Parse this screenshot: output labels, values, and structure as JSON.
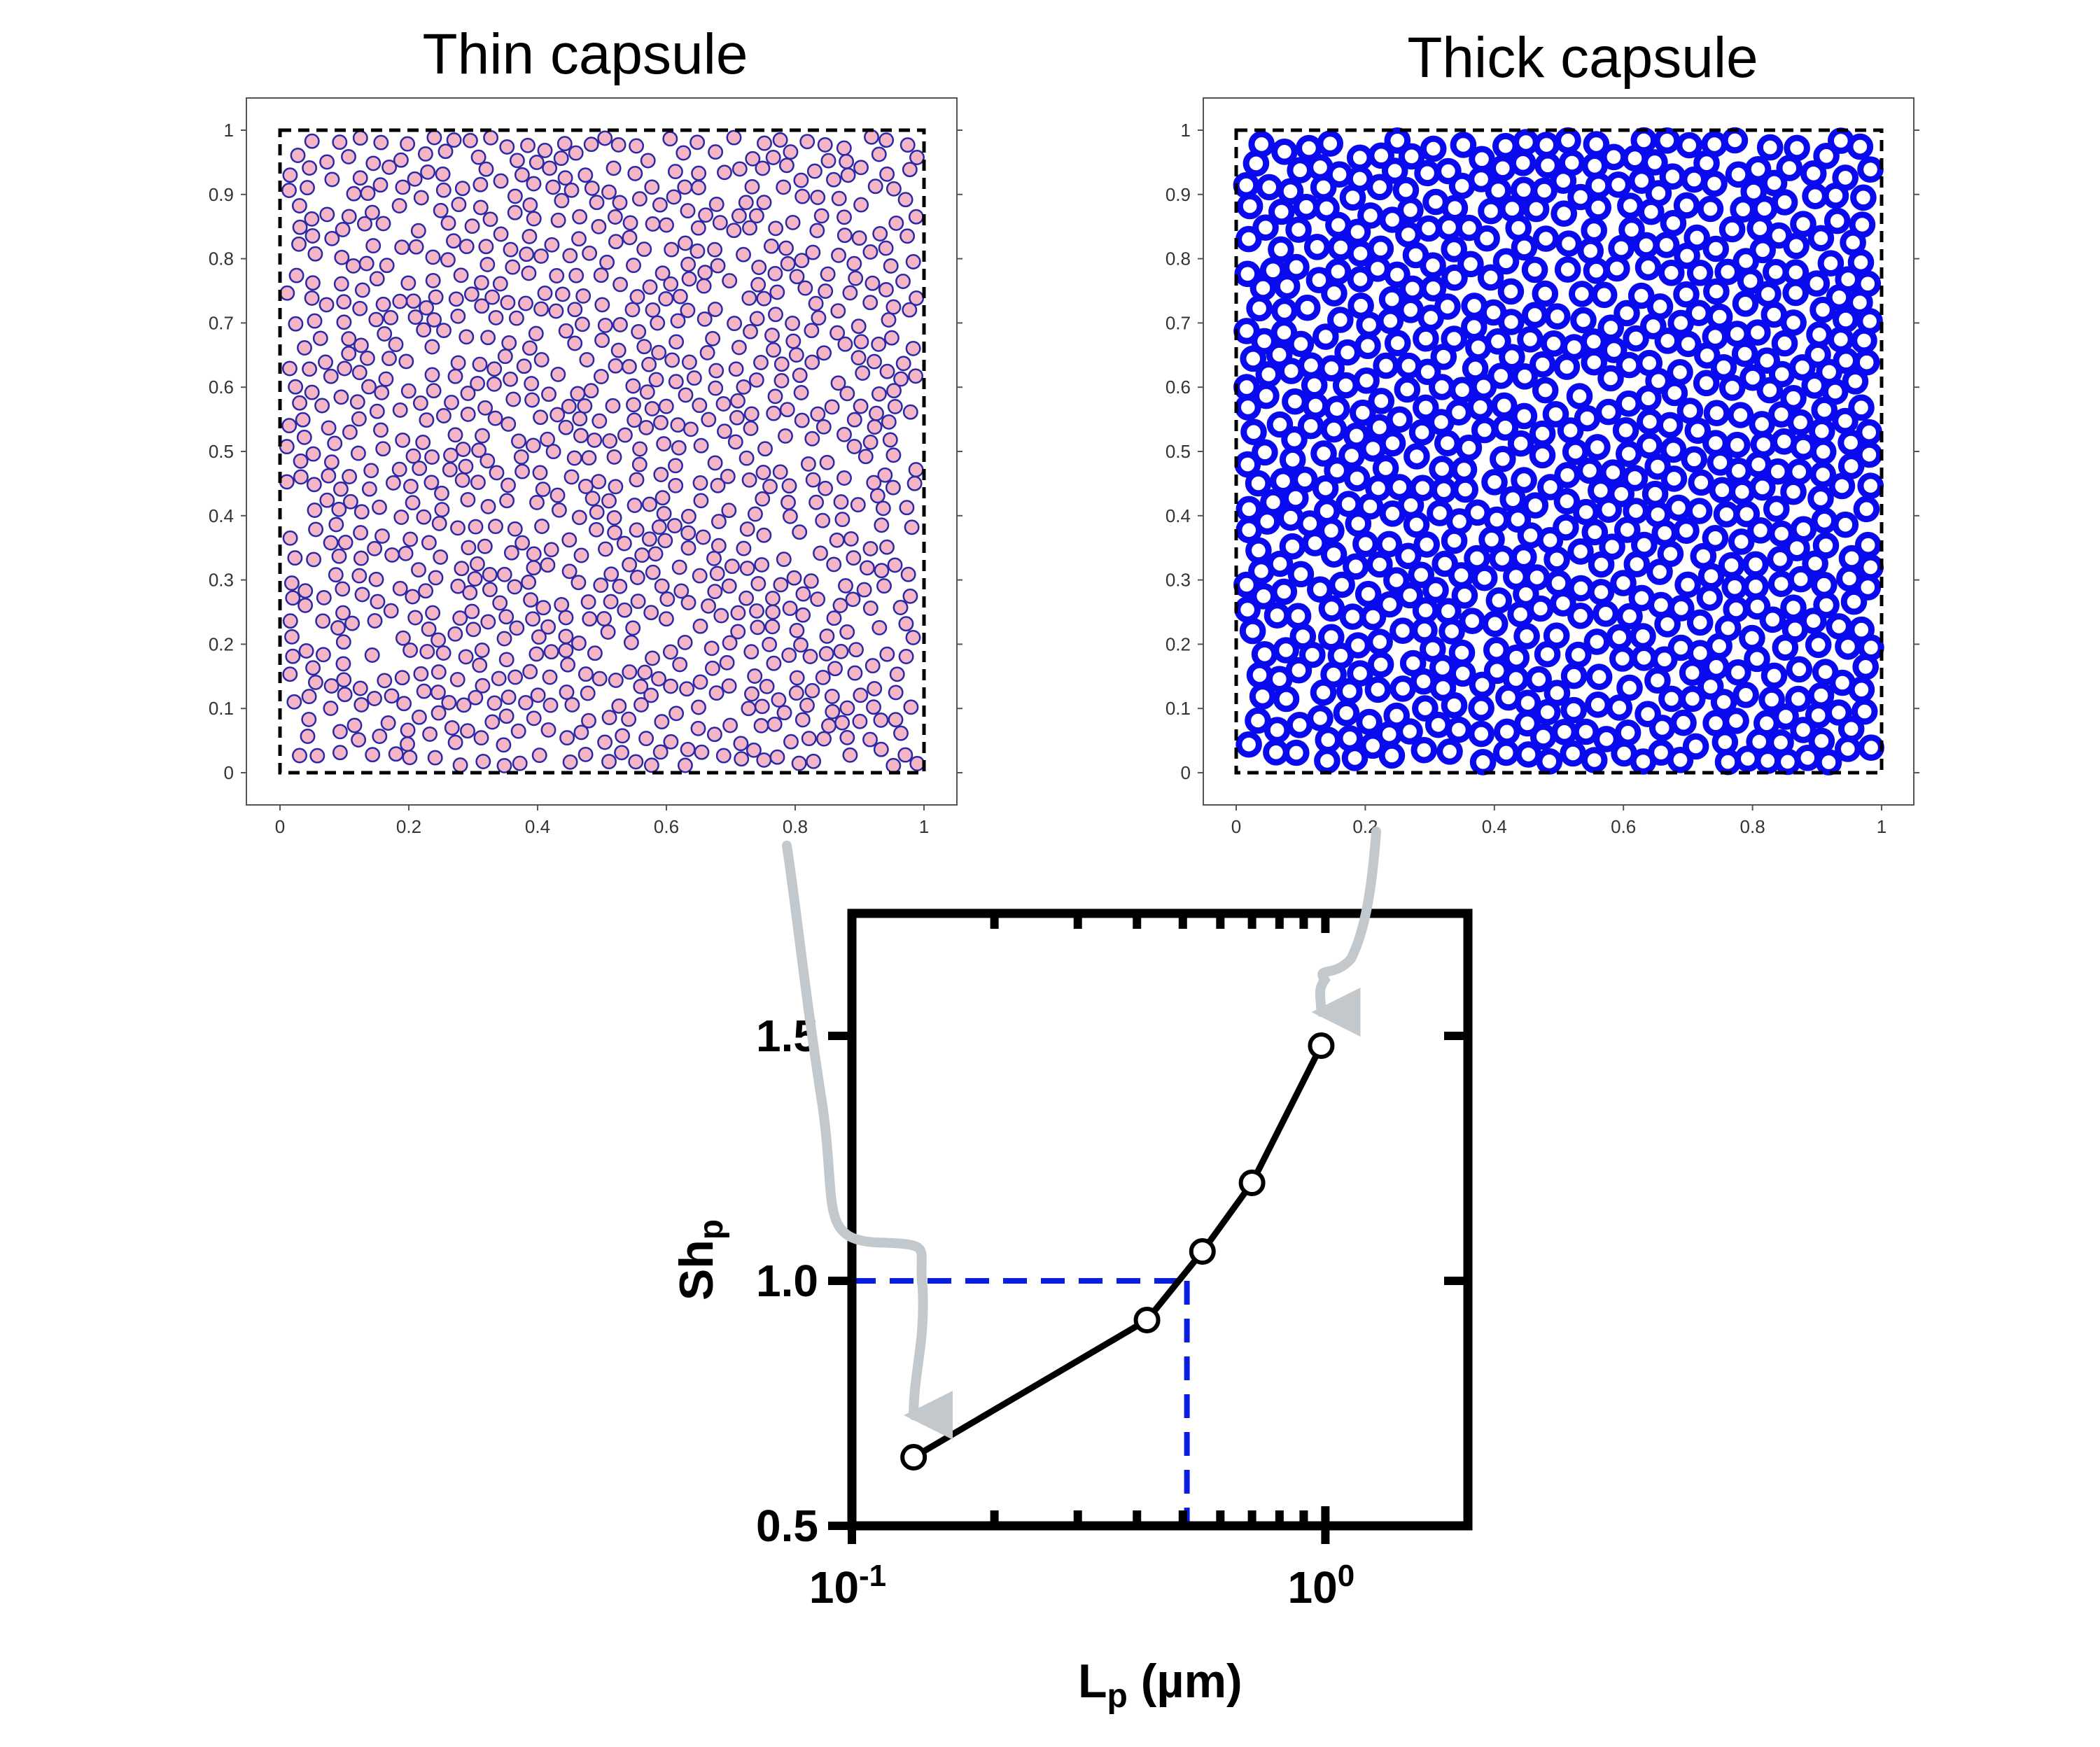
{
  "chart_data": [
    {
      "type": "scatter",
      "title": "Thin capsule",
      "xlim": [
        0,
        1
      ],
      "ylim": [
        0,
        1
      ],
      "x_ticks": [
        "0",
        "0.2",
        "0.4",
        "0.6",
        "0.8",
        "1"
      ],
      "y_ticks": [
        "0",
        "0.1",
        "0.2",
        "0.3",
        "0.4",
        "0.5",
        "0.6",
        "0.7",
        "0.8",
        "0.9",
        "1"
      ],
      "boundary": "dashed square at domain edges 0 to 1",
      "particle_count": 1000,
      "particle_radius": 0.0105,
      "particle_fill": "#f4b6c6",
      "particle_edge": "#2a2aa8",
      "grid": false
    },
    {
      "type": "scatter",
      "title": "Thick capsule",
      "xlim": [
        0,
        1
      ],
      "ylim": [
        0,
        1
      ],
      "x_ticks": [
        "0",
        "0.2",
        "0.4",
        "0.6",
        "0.8",
        "1"
      ],
      "y_ticks": [
        "0",
        "0.1",
        "0.2",
        "0.3",
        "0.4",
        "0.5",
        "0.6",
        "0.7",
        "0.8",
        "0.9",
        "1"
      ],
      "boundary": "dashed square at domain edges 0 to 1",
      "particle_count": 1450,
      "particle_radius": 0.0155,
      "particle_fill": "#ffffff",
      "particle_edge": "#0a0aee",
      "grid": false
    },
    {
      "type": "line",
      "xlabel_main": "L",
      "xlabel_sub": "p",
      "xlabel_unit": " (µm)",
      "ylabel_main": "Sh",
      "ylabel_sub": "p",
      "x_scale": "log",
      "xlim": [
        0.1,
        2
      ],
      "ylim": [
        0.5,
        1.75
      ],
      "x_tick_labels": [
        {
          "value": 0.1,
          "base": "10",
          "exp": "-1"
        },
        {
          "value": 1,
          "base": "10",
          "exp": "0"
        }
      ],
      "y_ticks": [
        "0.5",
        "1.0",
        "1.5"
      ],
      "series": [
        {
          "x": [
            0.135,
            0.42,
            0.55,
            0.7,
            0.98
          ],
          "y": [
            0.64,
            0.92,
            1.06,
            1.2,
            1.48
          ],
          "color": "#000000",
          "marker": "open-circle"
        }
      ],
      "reference_lines": {
        "color": "#0a1ee0",
        "style": "dashed",
        "y": 1.0,
        "x": 0.51
      },
      "annotations": [
        {
          "type": "arrow",
          "from": "Thin capsule panel",
          "to_point": [
            0.135,
            0.64
          ],
          "color": "#c2c8cb"
        },
        {
          "type": "arrow",
          "from": "Thick capsule panel",
          "to_point": [
            0.98,
            1.48
          ],
          "color": "#c2c8cb"
        }
      ],
      "grid": false
    }
  ]
}
